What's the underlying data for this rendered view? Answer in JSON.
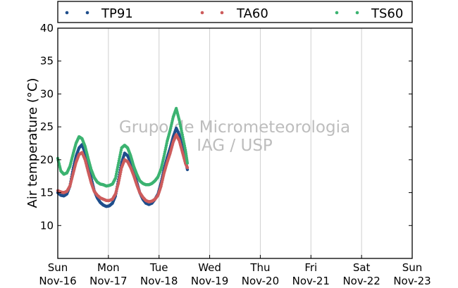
{
  "chart_data": {
    "type": "scatter",
    "ylabel": "Air temperature (°C)",
    "ylim": [
      5,
      40
    ],
    "yticks": [
      10,
      15,
      20,
      25,
      30,
      35,
      40
    ],
    "xlim": [
      "2014-11-16",
      "2014-11-23"
    ],
    "xticks": [
      {
        "day": "Sun",
        "date": "Nov-16"
      },
      {
        "day": "Mon",
        "date": "Nov-17"
      },
      {
        "day": "Tue",
        "date": "Nov-18"
      },
      {
        "day": "Wed",
        "date": "Nov-19"
      },
      {
        "day": "Thu",
        "date": "Nov-20"
      },
      {
        "day": "Fri",
        "date": "Nov-21"
      },
      {
        "day": "Sat",
        "date": "Nov-22"
      },
      {
        "day": "Sun",
        "date": "Nov-23"
      }
    ],
    "grid": "vertical",
    "legend_position": "top",
    "watermark": [
      "Grupo de Micrometeorologia",
      "IAG / USP"
    ],
    "series": [
      {
        "name": "TP91",
        "color": "#1f4e8c",
        "points": [
          [
            0.0,
            15.0
          ],
          [
            0.06,
            14.6
          ],
          [
            0.12,
            14.5
          ],
          [
            0.18,
            14.8
          ],
          [
            0.24,
            16.0
          ],
          [
            0.3,
            18.5
          ],
          [
            0.36,
            20.5
          ],
          [
            0.42,
            21.8
          ],
          [
            0.48,
            22.3
          ],
          [
            0.54,
            21.0
          ],
          [
            0.6,
            19.2
          ],
          [
            0.66,
            17.2
          ],
          [
            0.72,
            15.3
          ],
          [
            0.78,
            14.2
          ],
          [
            0.84,
            13.5
          ],
          [
            0.9,
            13.1
          ],
          [
            0.96,
            12.9
          ],
          [
            1.02,
            13.0
          ],
          [
            1.08,
            13.4
          ],
          [
            1.14,
            14.5
          ],
          [
            1.2,
            17.0
          ],
          [
            1.26,
            19.5
          ],
          [
            1.32,
            21.0
          ],
          [
            1.38,
            20.6
          ],
          [
            1.44,
            19.6
          ],
          [
            1.5,
            18.3
          ],
          [
            1.56,
            16.6
          ],
          [
            1.62,
            15.0
          ],
          [
            1.68,
            14.0
          ],
          [
            1.74,
            13.4
          ],
          [
            1.8,
            13.2
          ],
          [
            1.86,
            13.4
          ],
          [
            1.92,
            14.0
          ],
          [
            1.98,
            14.8
          ],
          [
            2.04,
            16.5
          ],
          [
            2.1,
            18.6
          ],
          [
            2.16,
            20.3
          ],
          [
            2.22,
            21.8
          ],
          [
            2.28,
            23.5
          ],
          [
            2.34,
            24.8
          ],
          [
            2.4,
            23.8
          ],
          [
            2.46,
            22.0
          ],
          [
            2.52,
            20.0
          ],
          [
            2.56,
            18.5
          ]
        ]
      },
      {
        "name": "TA60",
        "color": "#cd5c5c",
        "points": [
          [
            0.0,
            15.3
          ],
          [
            0.06,
            15.1
          ],
          [
            0.12,
            15.0
          ],
          [
            0.18,
            15.2
          ],
          [
            0.24,
            16.0
          ],
          [
            0.3,
            17.8
          ],
          [
            0.36,
            19.6
          ],
          [
            0.42,
            20.8
          ],
          [
            0.48,
            21.1
          ],
          [
            0.54,
            20.0
          ],
          [
            0.6,
            18.2
          ],
          [
            0.66,
            16.5
          ],
          [
            0.72,
            15.2
          ],
          [
            0.78,
            14.6
          ],
          [
            0.84,
            14.2
          ],
          [
            0.9,
            14.0
          ],
          [
            0.96,
            13.8
          ],
          [
            1.02,
            13.8
          ],
          [
            1.08,
            14.0
          ],
          [
            1.14,
            14.8
          ],
          [
            1.2,
            16.5
          ],
          [
            1.26,
            18.8
          ],
          [
            1.32,
            20.0
          ],
          [
            1.38,
            19.7
          ],
          [
            1.44,
            18.8
          ],
          [
            1.5,
            17.6
          ],
          [
            1.56,
            16.2
          ],
          [
            1.62,
            15.0
          ],
          [
            1.68,
            14.3
          ],
          [
            1.74,
            13.8
          ],
          [
            1.8,
            13.6
          ],
          [
            1.86,
            13.7
          ],
          [
            1.92,
            14.0
          ],
          [
            1.98,
            14.6
          ],
          [
            2.04,
            16.0
          ],
          [
            2.1,
            18.0
          ],
          [
            2.16,
            19.6
          ],
          [
            2.22,
            21.0
          ],
          [
            2.28,
            22.7
          ],
          [
            2.34,
            23.8
          ],
          [
            2.4,
            22.9
          ],
          [
            2.46,
            21.2
          ],
          [
            2.52,
            19.5
          ],
          [
            2.56,
            18.8
          ]
        ]
      },
      {
        "name": "TS60",
        "color": "#3cb371",
        "points": [
          [
            0.0,
            20.2
          ],
          [
            0.06,
            18.3
          ],
          [
            0.12,
            17.8
          ],
          [
            0.18,
            18.0
          ],
          [
            0.24,
            19.0
          ],
          [
            0.3,
            20.8
          ],
          [
            0.36,
            22.5
          ],
          [
            0.42,
            23.5
          ],
          [
            0.48,
            23.2
          ],
          [
            0.54,
            22.0
          ],
          [
            0.6,
            20.2
          ],
          [
            0.66,
            18.5
          ],
          [
            0.72,
            17.3
          ],
          [
            0.78,
            16.6
          ],
          [
            0.84,
            16.3
          ],
          [
            0.9,
            16.2
          ],
          [
            0.96,
            16.0
          ],
          [
            1.02,
            16.1
          ],
          [
            1.08,
            16.3
          ],
          [
            1.14,
            17.2
          ],
          [
            1.2,
            19.5
          ],
          [
            1.26,
            21.8
          ],
          [
            1.32,
            22.2
          ],
          [
            1.38,
            21.8
          ],
          [
            1.44,
            20.6
          ],
          [
            1.5,
            19.0
          ],
          [
            1.56,
            17.8
          ],
          [
            1.62,
            16.8
          ],
          [
            1.68,
            16.4
          ],
          [
            1.74,
            16.2
          ],
          [
            1.8,
            16.2
          ],
          [
            1.86,
            16.4
          ],
          [
            1.92,
            16.8
          ],
          [
            1.98,
            17.4
          ],
          [
            2.04,
            18.6
          ],
          [
            2.1,
            20.6
          ],
          [
            2.16,
            22.8
          ],
          [
            2.22,
            24.5
          ],
          [
            2.28,
            26.5
          ],
          [
            2.34,
            27.8
          ],
          [
            2.4,
            26.0
          ],
          [
            2.46,
            23.8
          ],
          [
            2.52,
            21.5
          ],
          [
            2.56,
            19.5
          ]
        ]
      }
    ]
  }
}
